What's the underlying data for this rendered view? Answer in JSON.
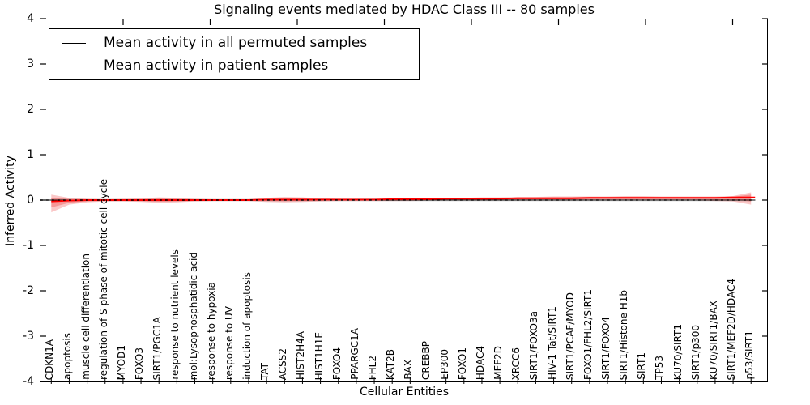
{
  "figure": {
    "title": "Signaling events mediated by HDAC Class III -- 80 samples",
    "xlabel": "Cellular Entities",
    "ylabel": "Inferred Activity"
  },
  "legend": {
    "entries": [
      {
        "label": "Mean activity in all permuted samples",
        "color": "#000000"
      },
      {
        "label": "Mean activity in patient samples",
        "color": "#ff0000"
      }
    ]
  },
  "chart_data": {
    "type": "line",
    "title": "Signaling events mediated by HDAC Class III -- 80 samples",
    "xlabel": "Cellular Entities",
    "ylabel": "Inferred Activity",
    "ylim": [
      -4,
      4
    ],
    "ytick_labels": [
      "4",
      "3",
      "2",
      "1",
      "0",
      "-1",
      "-2",
      "-3",
      "-4"
    ],
    "ytick_values": [
      4,
      3,
      2,
      1,
      0,
      -1,
      -2,
      -3,
      -4
    ],
    "grid": false,
    "legend_position": "upper left",
    "categories": [
      "CDKN1A",
      "apoptosis",
      "muscle cell differentiation",
      "regulation of S phase of mitotic cell cycle",
      "MYOD1",
      "FOXO3",
      "SIRT1/PGC1A",
      "response to nutrient levels",
      "mol:Lysophosphatidic acid",
      "response to hypoxia",
      "response to UV",
      "induction of apoptosis",
      "TAT",
      "ACSS2",
      "HIST2H4A",
      "HIST1H1E",
      "FOXO4",
      "PPARGC1A",
      "FHL2",
      "KAT2B",
      "BAX",
      "CREBBP",
      "EP300",
      "FOXO1",
      "HDAC4",
      "MEF2D",
      "XRCC6",
      "SIRT1/FOXO3a",
      "HIV-1 Tat/SIRT1",
      "SIRT1/PCAF/MYOD",
      "FOXO1/FHL2/SIRT1",
      "SIRT1/FOXO4",
      "SIRT1/Histone H1b",
      "SIRT1",
      "TP53",
      "KU70/SIRT1",
      "SIRT1/p300",
      "KU70/SIRT1/BAX",
      "SIRT1/MEF2D/HDAC4",
      "p53/SIRT1"
    ],
    "series": [
      {
        "name": "Mean activity in all permuted samples",
        "color": "#000000",
        "values": [
          0,
          0,
          0,
          0,
          0,
          0,
          0,
          0,
          0,
          0,
          0,
          0,
          0,
          0,
          0,
          0,
          0,
          0,
          0,
          0,
          0,
          0,
          0,
          0,
          0,
          0,
          0,
          0,
          0,
          0,
          0,
          0,
          0,
          0,
          0,
          0,
          0,
          0,
          0,
          0
        ]
      },
      {
        "name": "Mean activity in patient samples",
        "color": "#ff0000",
        "values": [
          -0.03,
          -0.01,
          0,
          0,
          0,
          0,
          0,
          0,
          0,
          0,
          0,
          0,
          0.01,
          0.01,
          0.01,
          0.01,
          0.01,
          0.01,
          0.01,
          0.02,
          0.02,
          0.02,
          0.03,
          0.03,
          0.03,
          0.03,
          0.04,
          0.04,
          0.04,
          0.04,
          0.05,
          0.05,
          0.05,
          0.05,
          0.05,
          0.05,
          0.05,
          0.05,
          0.06,
          0.06
        ]
      }
    ],
    "band": {
      "name": "patient activity spread",
      "color": "#f26d6d",
      "upper": [
        0.12,
        0.05,
        0.03,
        0.02,
        0.03,
        0.04,
        0.06,
        0.05,
        0.03,
        0.02,
        0.02,
        0.02,
        0.05,
        0.07,
        0.06,
        0.04,
        0.03,
        0.03,
        0.03,
        0.03,
        0.04,
        0.04,
        0.05,
        0.05,
        0.06,
        0.06,
        0.07,
        0.07,
        0.08,
        0.08,
        0.08,
        0.08,
        0.09,
        0.09,
        0.08,
        0.08,
        0.08,
        0.08,
        0.09,
        0.17
      ],
      "lower": [
        -0.27,
        -0.1,
        -0.05,
        -0.03,
        -0.03,
        -0.04,
        -0.06,
        -0.05,
        -0.03,
        -0.02,
        -0.02,
        -0.02,
        -0.04,
        -0.05,
        -0.04,
        -0.03,
        -0.02,
        -0.02,
        -0.02,
        -0.02,
        -0.02,
        -0.01,
        -0.01,
        -0.01,
        -0.01,
        -0.01,
        -0.01,
        -0.01,
        -0.01,
        -0.01,
        -0.01,
        -0.01,
        -0.01,
        -0.01,
        -0.01,
        -0.01,
        -0.01,
        -0.02,
        -0.03,
        -0.1
      ]
    },
    "gray_band": {
      "color": "#999999",
      "upper": [
        0.05,
        0.04,
        0.03,
        0.03,
        0.03,
        0.03,
        0.04,
        0.04,
        0.03,
        0.03,
        0.03,
        0.03,
        0.04,
        0.05,
        0.05,
        0.04,
        0.04,
        0.04,
        0.04,
        0.04,
        0.04,
        0.04,
        0.04,
        0.04,
        0.04,
        0.04,
        0.05,
        0.05,
        0.05,
        0.05,
        0.04,
        0.04,
        0.04,
        0.04,
        0.04,
        0.04,
        0.04,
        0.04,
        0.04,
        0.05
      ],
      "lower": [
        -0.05,
        -0.04,
        -0.03,
        -0.03,
        -0.03,
        -0.03,
        -0.04,
        -0.04,
        -0.03,
        -0.03,
        -0.03,
        -0.03,
        -0.04,
        -0.04,
        -0.04,
        -0.03,
        -0.03,
        -0.03,
        -0.03,
        -0.03,
        -0.03,
        -0.03,
        -0.03,
        -0.03,
        -0.03,
        -0.03,
        -0.03,
        -0.03,
        -0.03,
        -0.03,
        -0.03,
        -0.03,
        -0.03,
        -0.03,
        -0.03,
        -0.03,
        -0.03,
        -0.03,
        -0.03,
        -0.04
      ]
    }
  }
}
